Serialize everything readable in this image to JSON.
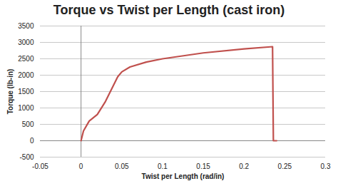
{
  "chart_data": {
    "type": "line",
    "title": "Torque vs Twist per Length (cast iron)",
    "x_label": "Twist per Length (rad/in)",
    "y_label": "Torque (lb-in)",
    "x": [
      0,
      0.003,
      0.01,
      0.02,
      0.03,
      0.04,
      0.045,
      0.05,
      0.06,
      0.08,
      0.1,
      0.15,
      0.2,
      0.235,
      0.236,
      0.24
    ],
    "series": [
      {
        "name": "Torque",
        "color": "#c0504d",
        "values": [
          0,
          300,
          600,
          800,
          1200,
          1700,
          1950,
          2100,
          2250,
          2400,
          2500,
          2680,
          2800,
          2870,
          0,
          0
        ]
      }
    ],
    "xlim": [
      -0.05,
      0.3
    ],
    "xticks": [
      -0.05,
      0,
      0.05,
      0.1,
      0.15,
      0.2,
      0.25,
      0.3
    ],
    "ylim": [
      -500,
      3500
    ],
    "yticks": [
      -500,
      0,
      500,
      1000,
      1500,
      2000,
      2500,
      3000,
      3500
    ],
    "grid": true
  }
}
